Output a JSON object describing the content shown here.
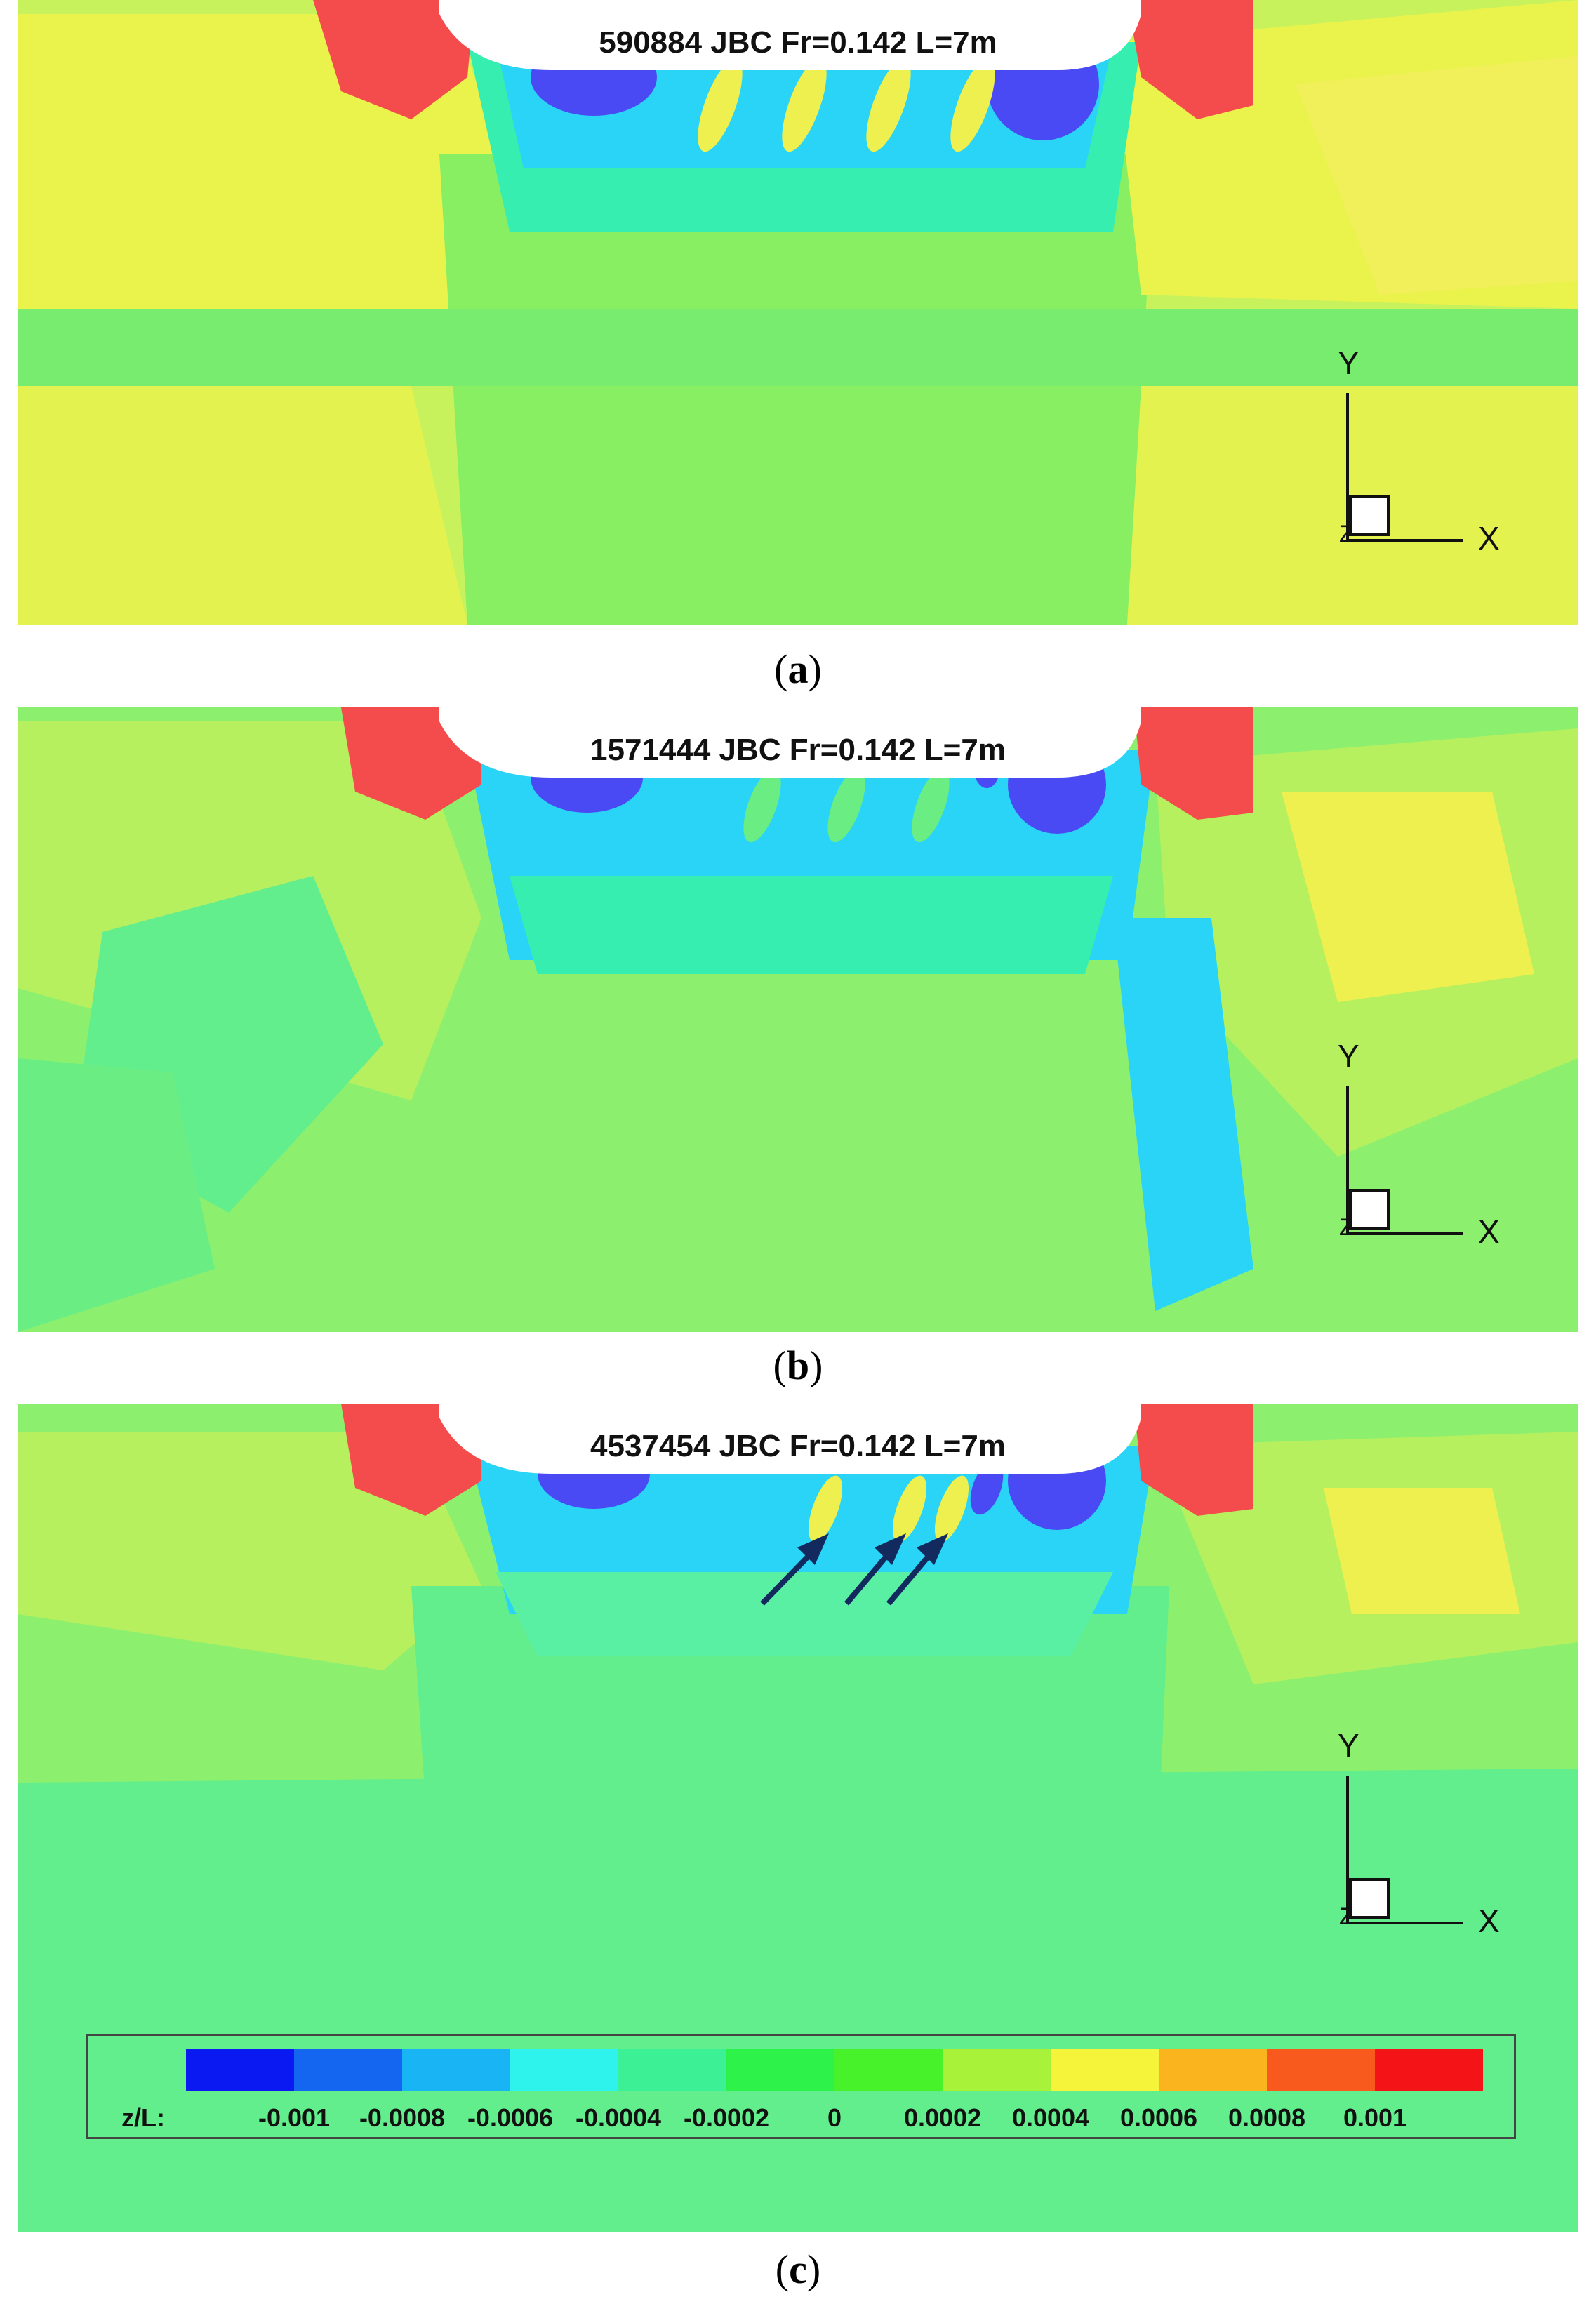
{
  "panels": [
    {
      "title": "590884 JBC Fr=0.142 L=7m",
      "caption_letter": "a"
    },
    {
      "title": "1571444 JBC Fr=0.142 L=7m",
      "caption_letter": "b"
    },
    {
      "title": "4537454 JBC Fr=0.142 L=7m",
      "caption_letter": "c"
    }
  ],
  "axes": {
    "y_label": "Y",
    "x_label": "X",
    "z_label": "Z"
  },
  "legend": {
    "variable": "z/L:",
    "tick_labels": [
      "-0.001",
      "-0.0008",
      "-0.0006",
      "-0.0004",
      "-0.0002",
      "0",
      "0.0002",
      "0.0004",
      "0.0006",
      "0.0008",
      "0.001"
    ],
    "colors": [
      "#0a18f2",
      "#1466f0",
      "#18b4f4",
      "#2ef2ec",
      "#3cf096",
      "#2cf24a",
      "#48f22a",
      "#a8f23a",
      "#f6f43a",
      "#fab41e",
      "#f75a1c",
      "#f41418"
    ]
  },
  "palette": {
    "background": "#8cf06e",
    "deep_negative": "#4a4af4",
    "negative": "#2ad4f6",
    "slight_negative": "#5af0a4",
    "neutral": "#62ee8c",
    "slight_positive": "#b6f05e",
    "positive": "#eef050",
    "deep_positive": "#f44c4c",
    "hull": "#ffffff",
    "arrow": "#132a5e"
  }
}
